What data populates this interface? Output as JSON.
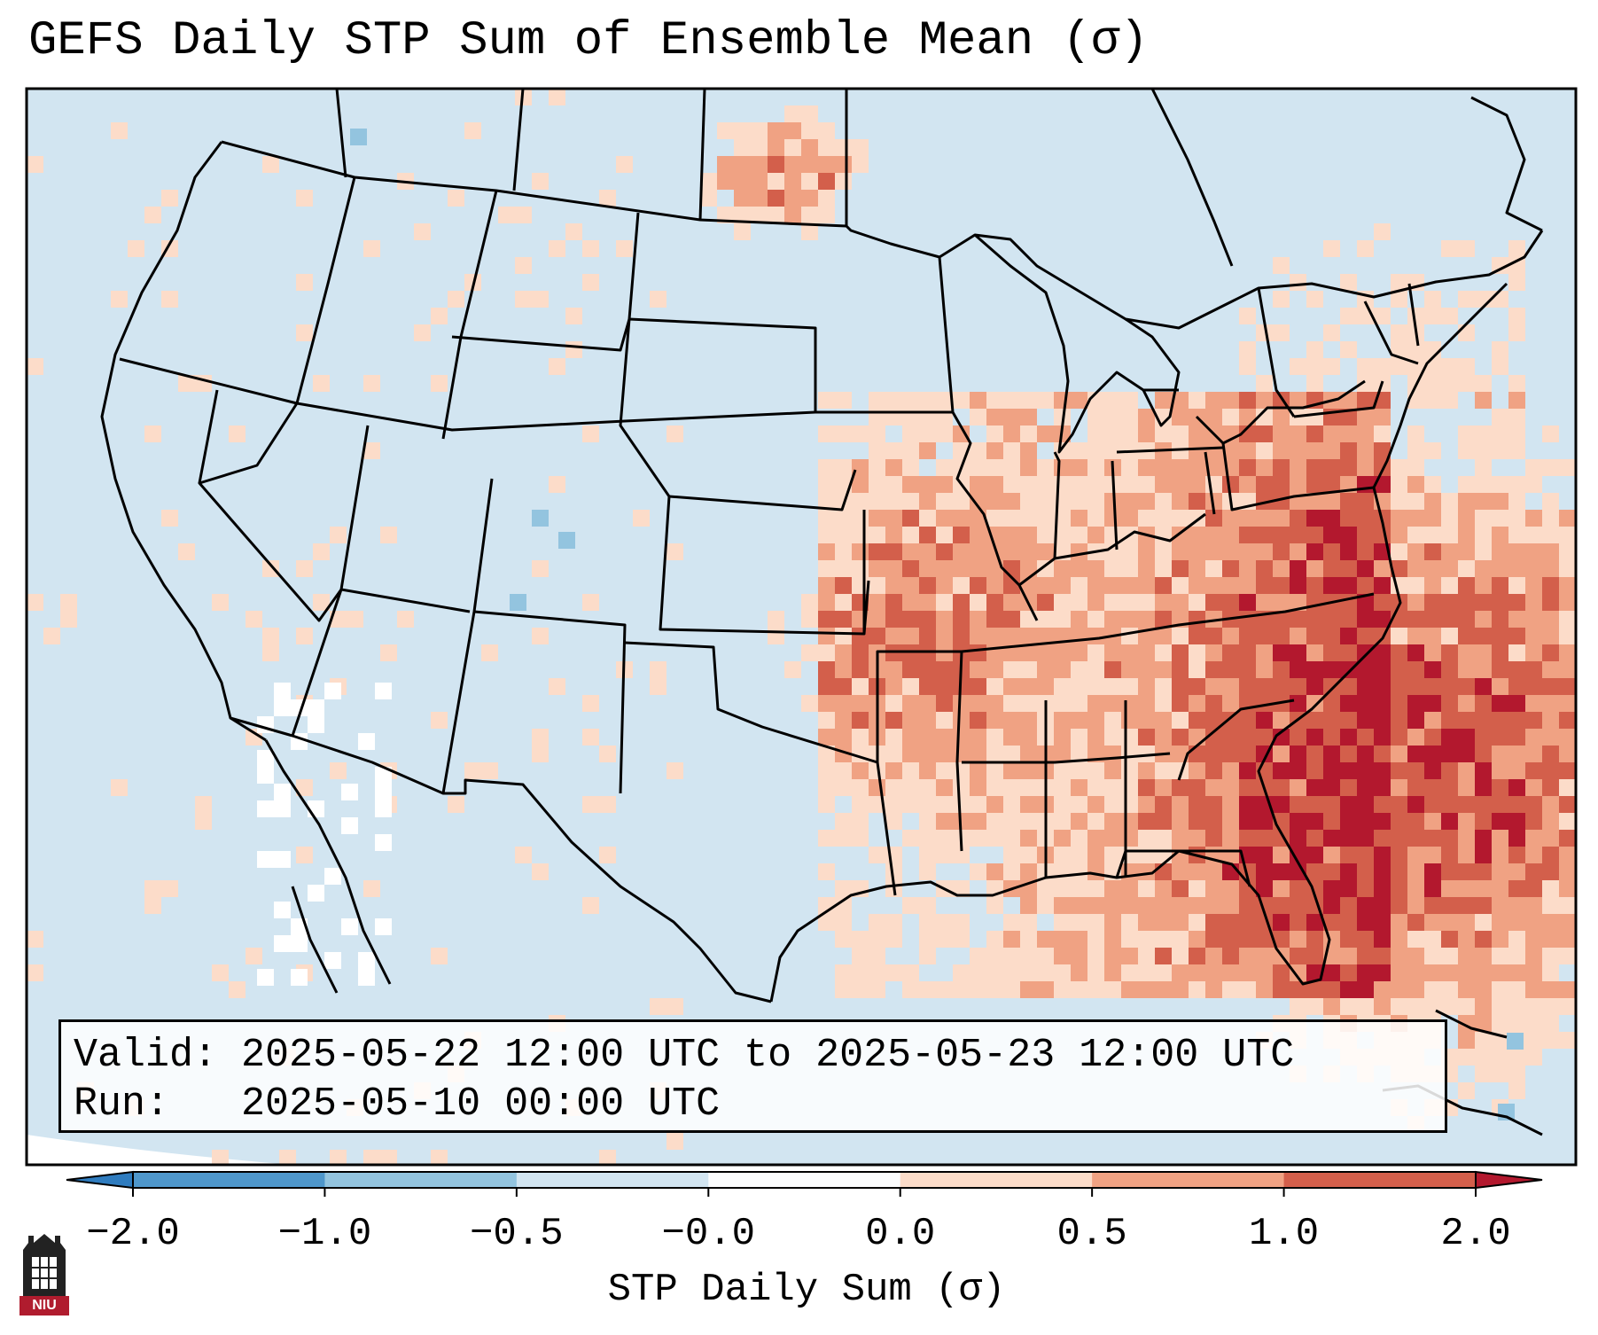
{
  "title": "GEFS Daily STP Sum of Ensemble Mean (σ)",
  "info": {
    "valid_label": "Valid:",
    "valid_value": "2025-05-22 12:00 UTC to 2025-05-23 12:00 UTC",
    "run_label": "Run:  ",
    "run_value": "2025-05-10 00:00 UTC"
  },
  "colorbar": {
    "label": "STP Daily Sum (σ)",
    "ticks": [
      "−2.0",
      "−1.0",
      "−0.5",
      "−0.0",
      "0.0",
      "0.5",
      "1.0",
      "2.0"
    ],
    "colors": [
      "#2f7cbf",
      "#4f97cb",
      "#93c4df",
      "#d2e5f1",
      "#fbfcfd",
      "#fcdcc9",
      "#f0a283",
      "#d35f4b",
      "#b3182e"
    ]
  },
  "colors": {
    "background_field": "#d2e5f1",
    "weak_positive": "#fcdcc9",
    "moderate_positive": "#f0a283",
    "strong_positive": "#d35f4b",
    "extreme_positive": "#b3182e",
    "weak_negative": "#93c4df"
  },
  "logo": {
    "text": "NIU",
    "name": "niu-logo-icon"
  }
}
